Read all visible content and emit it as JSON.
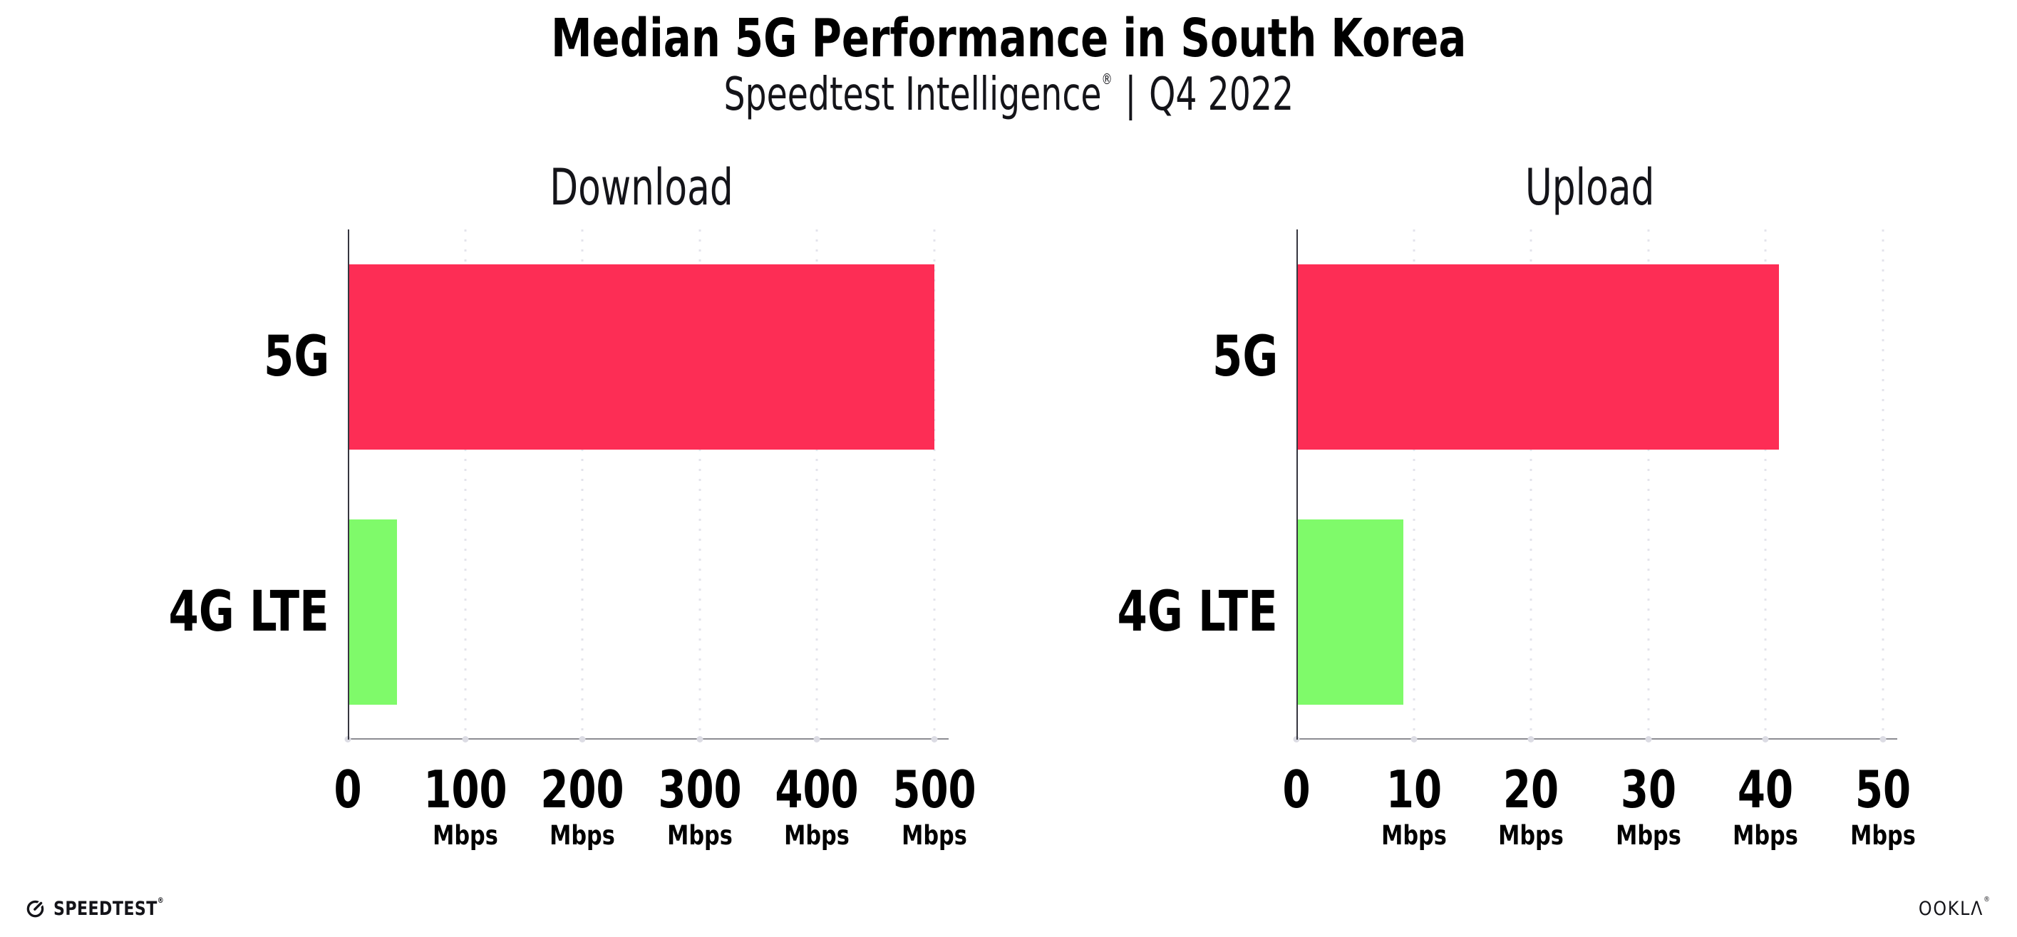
{
  "header": {
    "title": "Median 5G Performance in South Korea",
    "subtitle": {
      "brand": "Speedtest Intelligence",
      "reg_mark": "®",
      "separator": "|",
      "period": "Q4 2022"
    }
  },
  "chart_data": [
    {
      "type": "bar",
      "orientation": "horizontal",
      "title": "Download",
      "categories": [
        "5G",
        "4G LTE"
      ],
      "values": [
        499,
        41
      ],
      "unit": "Mbps",
      "xlabel": "",
      "ylabel": "",
      "xlim": [
        0,
        500
      ],
      "xticks": [
        0,
        100,
        200,
        300,
        400,
        500
      ],
      "series_colors": [
        "#FD2D55",
        "#7FFA6A"
      ],
      "grid": "vertical-dotted",
      "legend": "none"
    },
    {
      "type": "bar",
      "orientation": "horizontal",
      "title": "Upload",
      "categories": [
        "5G",
        "4G LTE"
      ],
      "values": [
        41,
        9
      ],
      "unit": "Mbps",
      "xlabel": "",
      "ylabel": "",
      "xlim": [
        0,
        50
      ],
      "xticks": [
        0,
        10,
        20,
        30,
        40,
        50
      ],
      "series_colors": [
        "#FD2D55",
        "#7FFA6A"
      ],
      "grid": "vertical-dotted",
      "legend": "none"
    }
  ],
  "footer": {
    "speedtest": {
      "label": "SPEEDTEST",
      "reg_mark": "®"
    },
    "ookla": {
      "label": "OOKLΛ",
      "reg_mark": "®"
    }
  },
  "colors": {
    "bar_5g": "#FD2D55",
    "bar_4g_lte": "#7FFA6A",
    "grid": "#E4E4EC",
    "x_axis": "#8C8C92",
    "y_axis": "#36363F",
    "tick_dot": "#DCDCE4",
    "text": "#000000"
  }
}
